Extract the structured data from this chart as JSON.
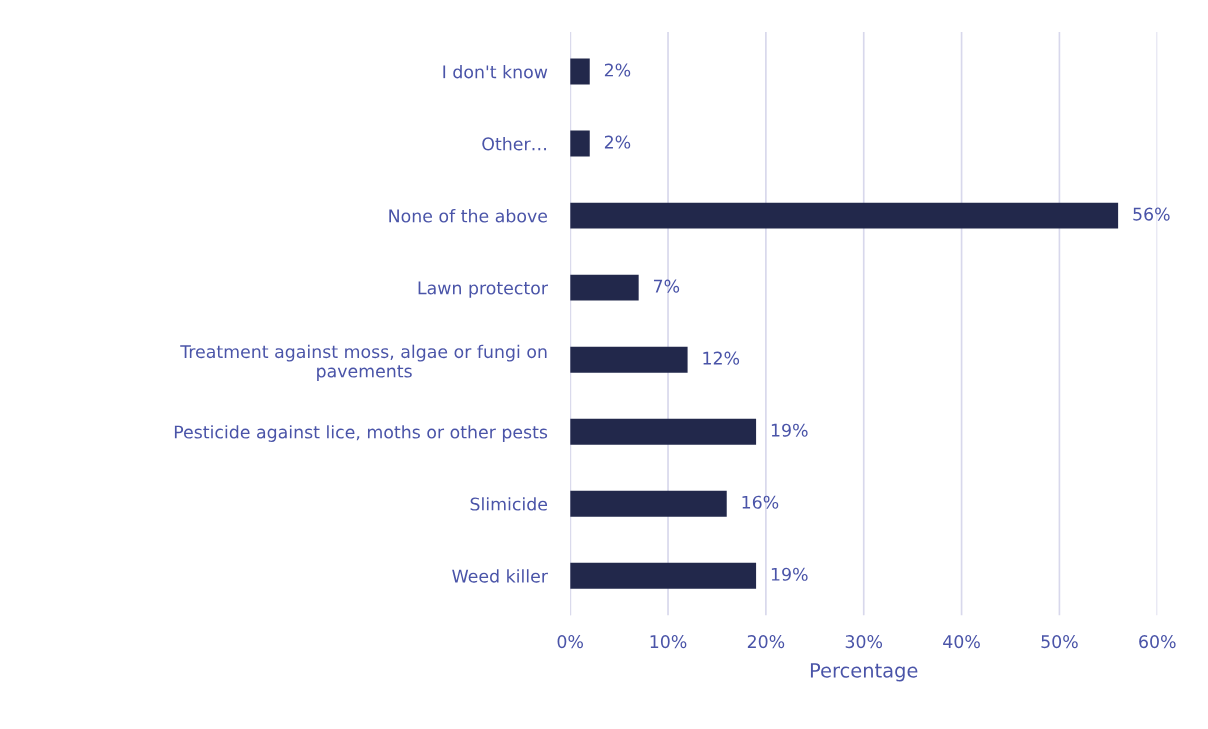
{
  "chart_data": {
    "type": "bar",
    "orientation": "horizontal",
    "xlabel": "Percentage",
    "categories": [
      "I don't know",
      "Other…",
      "None of the above",
      "Lawn protector",
      "Treatment against moss, algae or fungi on\npavements",
      "Pesticide against lice, moths or other pests",
      "Slimicide",
      "Weed killer"
    ],
    "values": [
      2,
      2,
      56,
      7,
      12,
      19,
      16,
      19
    ],
    "value_labels": [
      "2%",
      "2%",
      "56%",
      "7%",
      "12%",
      "19%",
      "16%",
      "19%"
    ],
    "color": "#22284b",
    "xlim": [
      0,
      60
    ],
    "xticks": [
      {
        "value": 0,
        "label": "0%"
      },
      {
        "value": 10,
        "label": "10%"
      },
      {
        "value": 20,
        "label": "20%"
      },
      {
        "value": 30,
        "label": "30%"
      },
      {
        "value": 40,
        "label": "40%"
      },
      {
        "value": 50,
        "label": "50%"
      },
      {
        "value": 60,
        "label": "60%"
      }
    ],
    "grid": "x",
    "legend": false
  }
}
